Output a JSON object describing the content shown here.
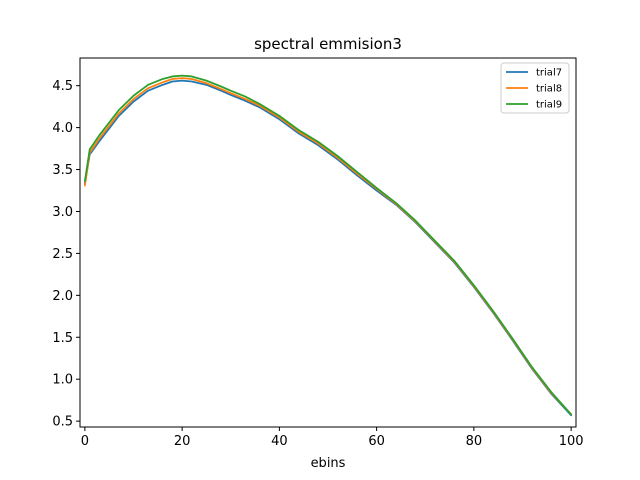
{
  "chart_data": {
    "type": "line",
    "title": "spectral emmision3",
    "xlabel": "ebins",
    "ylabel": "",
    "xlim": [
      -1,
      101
    ],
    "ylim": [
      0.43,
      4.83
    ],
    "xticks": [
      0,
      20,
      40,
      60,
      80,
      100
    ],
    "yticks": [
      0.5,
      1.0,
      1.5,
      2.0,
      2.5,
      3.0,
      3.5,
      4.0,
      4.5
    ],
    "xtick_labels": [
      "0",
      "20",
      "40",
      "60",
      "80",
      "100"
    ],
    "ytick_labels": [
      "0.5",
      "1.0",
      "1.5",
      "2.0",
      "2.5",
      "3.0",
      "3.5",
      "4.0",
      "4.5"
    ],
    "grid": false,
    "legend_position": "top-right",
    "x": [
      0,
      1,
      3,
      5,
      7,
      10,
      13,
      16,
      18,
      20,
      22,
      25,
      28,
      30,
      33,
      36,
      40,
      44,
      48,
      52,
      56,
      60,
      64,
      68,
      72,
      76,
      80,
      84,
      88,
      92,
      96,
      100
    ],
    "series": [
      {
        "name": "trial7",
        "color": "#1f77b4",
        "values": [
          3.33,
          3.68,
          3.84,
          3.99,
          4.14,
          4.31,
          4.44,
          4.51,
          4.55,
          4.56,
          4.55,
          4.51,
          4.44,
          4.39,
          4.32,
          4.24,
          4.1,
          3.93,
          3.79,
          3.62,
          3.43,
          3.25,
          3.08,
          2.87,
          2.63,
          2.39,
          2.1,
          1.79,
          1.46,
          1.12,
          0.82,
          0.57
        ]
      },
      {
        "name": "trial8",
        "color": "#ff7f0e",
        "values": [
          3.31,
          3.7,
          3.87,
          4.02,
          4.17,
          4.34,
          4.47,
          4.54,
          4.58,
          4.59,
          4.58,
          4.53,
          4.46,
          4.41,
          4.34,
          4.26,
          4.12,
          3.95,
          3.81,
          3.64,
          3.45,
          3.27,
          3.09,
          2.88,
          2.64,
          2.4,
          2.11,
          1.8,
          1.47,
          1.13,
          0.83,
          0.58
        ]
      },
      {
        "name": "trial9",
        "color": "#2ca02c",
        "values": [
          3.36,
          3.74,
          3.91,
          4.06,
          4.21,
          4.38,
          4.51,
          4.58,
          4.61,
          4.62,
          4.61,
          4.56,
          4.49,
          4.44,
          4.37,
          4.28,
          4.14,
          3.97,
          3.83,
          3.66,
          3.47,
          3.28,
          3.1,
          2.89,
          2.65,
          2.41,
          2.12,
          1.81,
          1.48,
          1.14,
          0.84,
          0.58
        ]
      }
    ]
  }
}
